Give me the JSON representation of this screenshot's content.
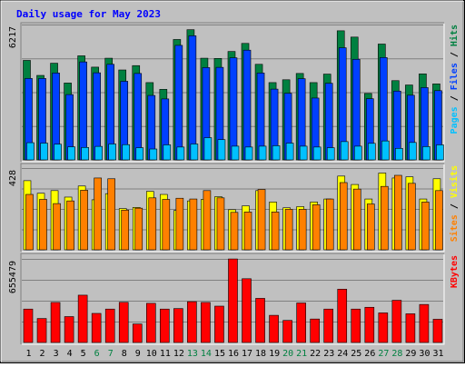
{
  "chart_data": [
    {
      "type": "bar",
      "title": "Daily usage for May 2023",
      "categories": [
        "1",
        "2",
        "3",
        "4",
        "5",
        "6",
        "7",
        "8",
        "9",
        "10",
        "11",
        "12",
        "13",
        "14",
        "15",
        "16",
        "17",
        "18",
        "19",
        "20",
        "21",
        "22",
        "23",
        "24",
        "25",
        "26",
        "27",
        "28",
        "29",
        "30",
        "31"
      ],
      "weekend_days": [
        "6",
        "7",
        "13",
        "14",
        "20",
        "21",
        "27",
        "28"
      ],
      "y_tick_label": "6217",
      "ylim": [
        0,
        6217
      ],
      "legend": [
        "Pages",
        "Files",
        "Hits"
      ],
      "series": [
        {
          "name": "Hits",
          "color": "#008040",
          "values": [
            4570,
            3880,
            4440,
            3530,
            4780,
            4260,
            4670,
            4130,
            4330,
            3550,
            3240,
            5530,
            5980,
            4670,
            4660,
            4980,
            5350,
            4390,
            3550,
            3680,
            3970,
            3550,
            3940,
            5930,
            5640,
            3050,
            5320,
            3640,
            3440,
            3950,
            3490
          ]
        },
        {
          "name": "Files",
          "color": "#0040ff",
          "values": [
            3740,
            3740,
            3990,
            3000,
            4500,
            4000,
            4390,
            3610,
            3970,
            2960,
            2800,
            5260,
            5700,
            4240,
            4250,
            4690,
            5040,
            3990,
            3250,
            3060,
            3730,
            2840,
            3520,
            5150,
            4620,
            2810,
            4700,
            3160,
            2970,
            3320,
            3180
          ]
        },
        {
          "name": "Pages",
          "color": "#00c0ff",
          "values": [
            790,
            770,
            720,
            600,
            570,
            620,
            730,
            700,
            560,
            500,
            690,
            590,
            730,
            1020,
            930,
            630,
            590,
            630,
            650,
            770,
            630,
            590,
            560,
            840,
            630,
            760,
            870,
            530,
            800,
            610,
            690
          ]
        }
      ]
    },
    {
      "type": "bar",
      "categories": [
        "1",
        "2",
        "3",
        "4",
        "5",
        "6",
        "7",
        "8",
        "9",
        "10",
        "11",
        "12",
        "13",
        "14",
        "15",
        "16",
        "17",
        "18",
        "19",
        "20",
        "21",
        "22",
        "23",
        "24",
        "25",
        "26",
        "27",
        "28",
        "29",
        "30",
        "31"
      ],
      "y_tick_label": "428",
      "ylim": [
        0,
        428
      ],
      "legend": [
        "Sites",
        "Visits"
      ],
      "series": [
        {
          "name": "Visits",
          "color": "#ffff00",
          "values": [
            362,
            296,
            310,
            276,
            334,
            262,
            294,
            216,
            222,
            306,
            290,
            206,
            256,
            264,
            278,
            210,
            230,
            310,
            250,
            220,
            226,
            250,
            266,
            386,
            342,
            266,
            402,
            376,
            382,
            266,
            372
          ]
        },
        {
          "name": "Sites",
          "color": "#ff8000",
          "values": [
            290,
            264,
            242,
            256,
            312,
            376,
            372,
            208,
            218,
            272,
            264,
            270,
            266,
            310,
            272,
            196,
            198,
            316,
            198,
            212,
            212,
            236,
            266,
            352,
            318,
            240,
            332,
            390,
            348,
            250,
            310
          ]
        }
      ]
    },
    {
      "type": "bar",
      "categories": [
        "1",
        "2",
        "3",
        "4",
        "5",
        "6",
        "7",
        "8",
        "9",
        "10",
        "11",
        "12",
        "13",
        "14",
        "15",
        "16",
        "17",
        "18",
        "19",
        "20",
        "21",
        "22",
        "23",
        "24",
        "25",
        "26",
        "27",
        "28",
        "29",
        "30",
        "31"
      ],
      "y_tick_label": "655479",
      "ylim": [
        0,
        655479
      ],
      "legend": [
        "KBytes"
      ],
      "series": [
        {
          "name": "KBytes",
          "color": "#ff0000",
          "values": [
            262000,
            188000,
            314000,
            203000,
            371000,
            228000,
            262000,
            315000,
            145000,
            307000,
            262000,
            266000,
            320000,
            314000,
            285000,
            655000,
            500000,
            346000,
            213000,
            173000,
            310000,
            184000,
            262000,
            418000,
            262000,
            276000,
            232000,
            331000,
            225000,
            298000,
            182000
          ]
        }
      ]
    }
  ]
}
